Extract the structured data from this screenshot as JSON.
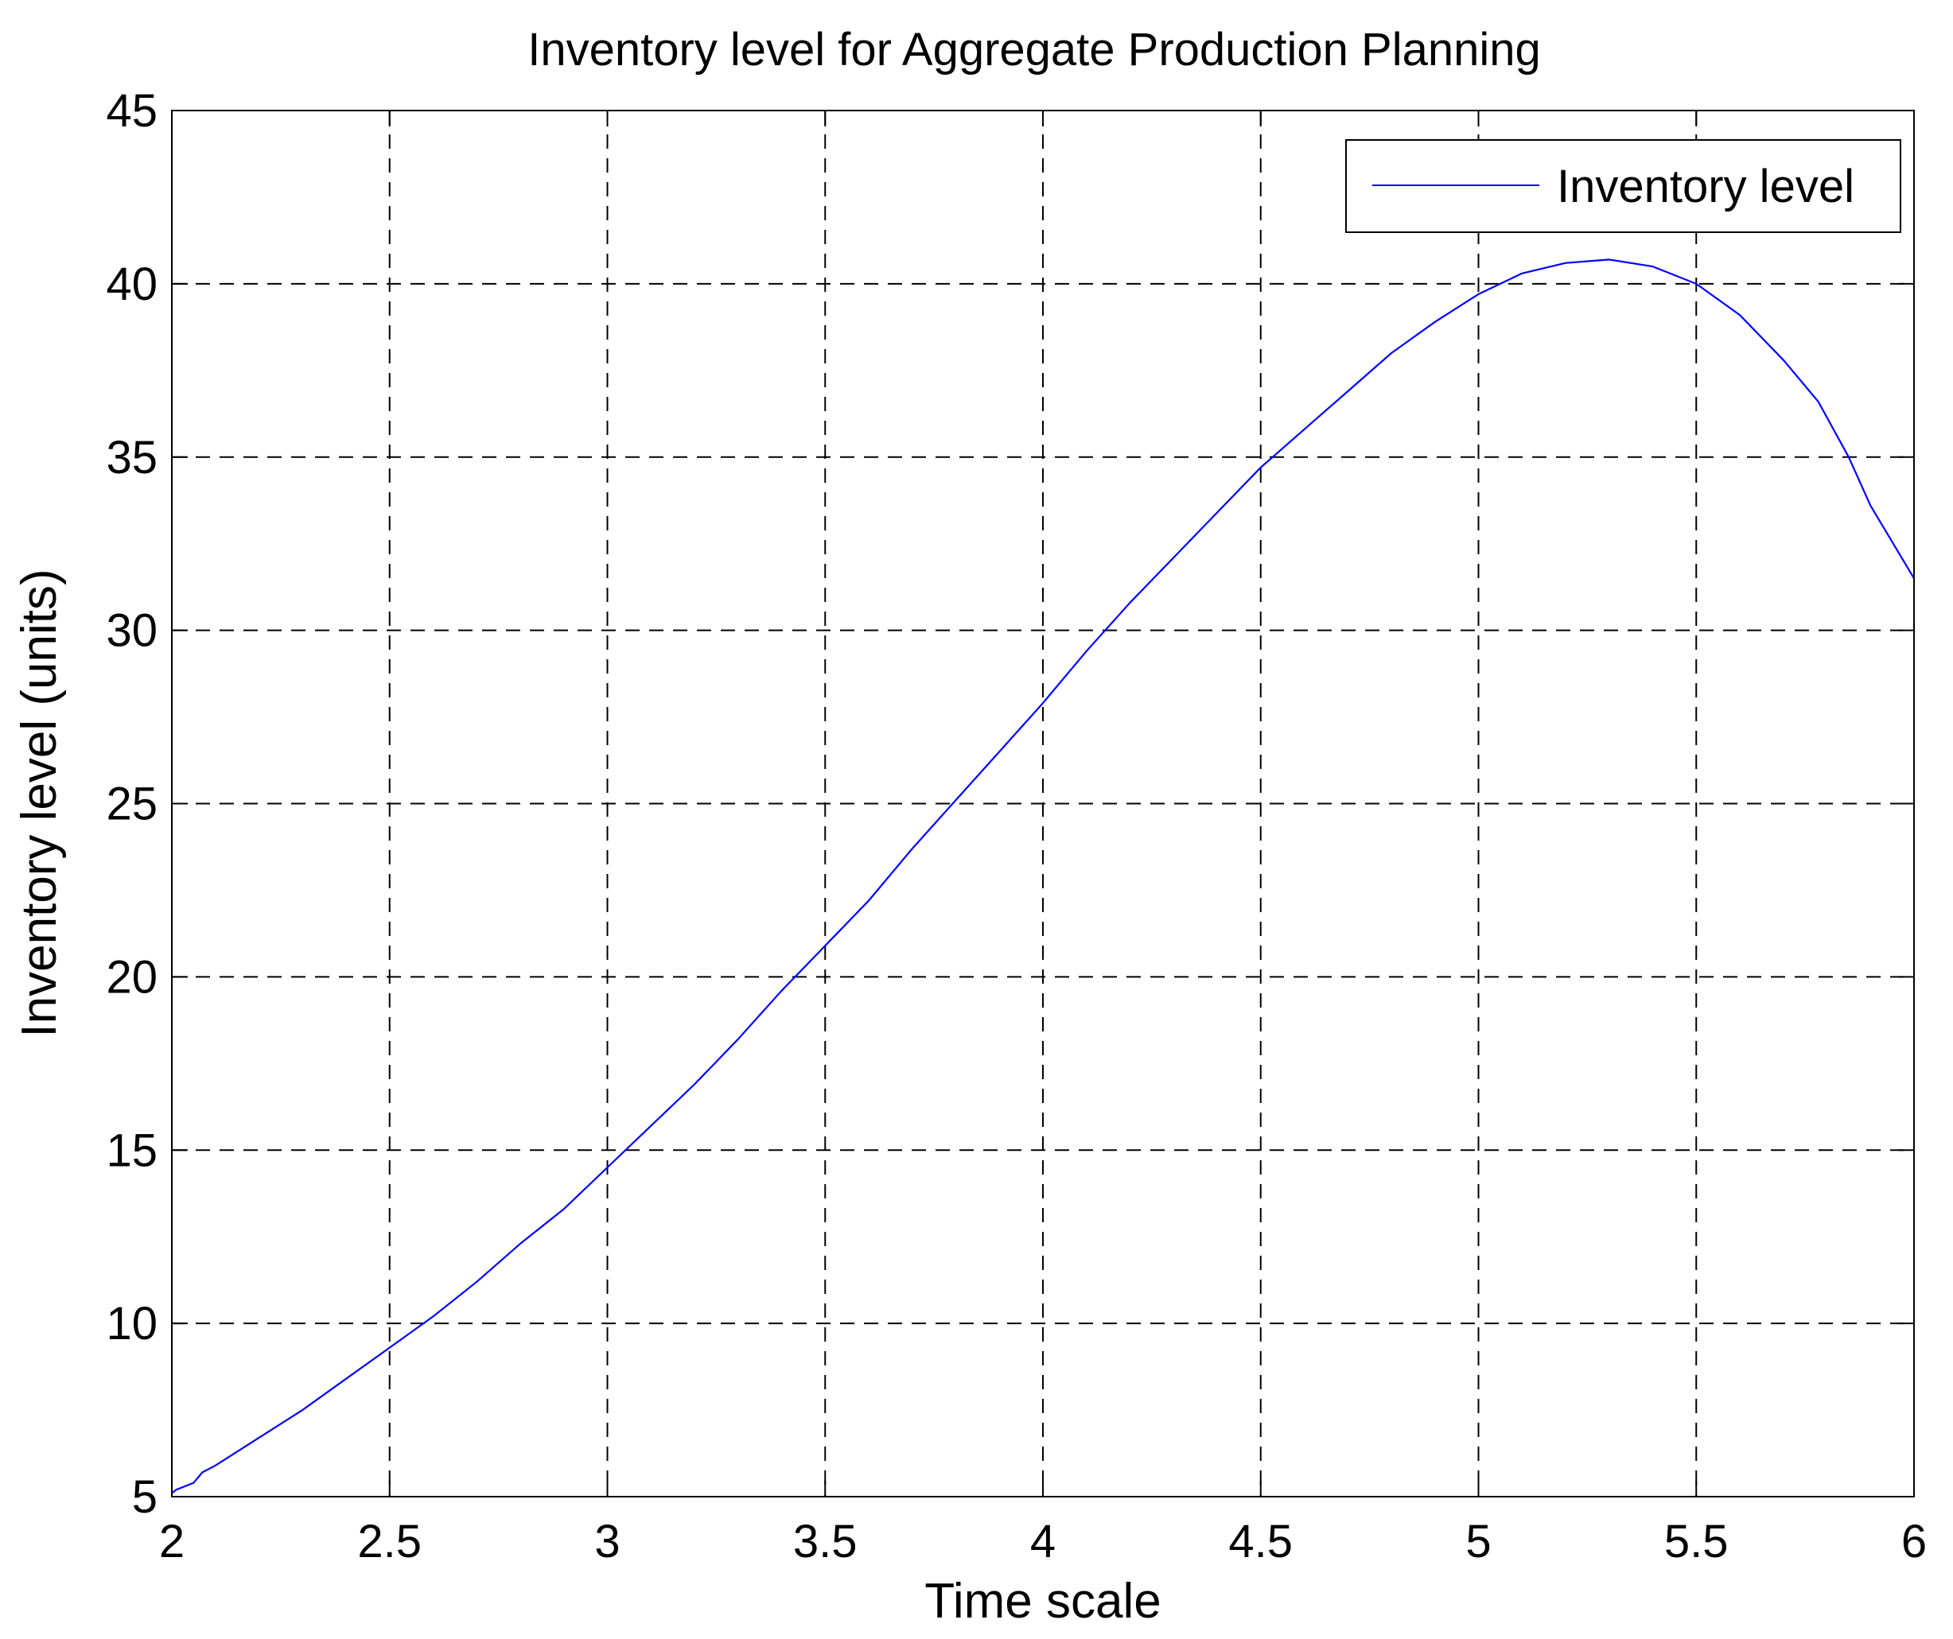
{
  "chart_data": {
    "type": "line",
    "title": "Inventory level for Aggregate Production Planning",
    "xlabel": "Time scale",
    "ylabel": "Inventory level (units)",
    "xlim": [
      2,
      6
    ],
    "ylim": [
      5,
      45
    ],
    "xticks": [
      2,
      2.5,
      3,
      3.5,
      4,
      4.5,
      5,
      5.5,
      6
    ],
    "xtick_labels": [
      "2",
      "2.5",
      "3",
      "3.5",
      "4",
      "4.5",
      "5",
      "5.5",
      "6"
    ],
    "yticks": [
      5,
      10,
      15,
      20,
      25,
      30,
      35,
      40,
      45
    ],
    "ytick_labels": [
      "5",
      "10",
      "15",
      "20",
      "25",
      "30",
      "35",
      "40",
      "45"
    ],
    "grid": true,
    "grid_style": "dashed",
    "legend_position": "top-right",
    "series": [
      {
        "name": "Inventory level",
        "color": "#0000ff",
        "x": [
          2.0,
          2.01,
          2.05,
          2.07,
          2.1,
          2.2,
          2.3,
          2.4,
          2.5,
          2.6,
          2.7,
          2.8,
          2.9,
          3.0,
          3.1,
          3.2,
          3.3,
          3.4,
          3.5,
          3.6,
          3.7,
          3.8,
          3.9,
          4.0,
          4.1,
          4.2,
          4.3,
          4.4,
          4.5,
          4.6,
          4.7,
          4.8,
          4.9,
          5.0,
          5.1,
          5.2,
          5.3,
          5.4,
          5.5,
          5.6,
          5.7,
          5.78,
          5.85,
          5.9,
          6.0
        ],
        "y": [
          5.1,
          5.2,
          5.4,
          5.7,
          5.9,
          6.7,
          7.5,
          8.4,
          9.3,
          10.2,
          11.2,
          12.3,
          13.3,
          14.5,
          15.7,
          16.9,
          18.2,
          19.6,
          20.9,
          22.2,
          23.7,
          25.1,
          26.5,
          27.9,
          29.4,
          30.8,
          32.1,
          33.4,
          34.7,
          35.8,
          36.9,
          38.0,
          38.9,
          39.7,
          40.3,
          40.6,
          40.7,
          40.5,
          40.0,
          39.1,
          37.8,
          36.6,
          35.0,
          33.6,
          31.5
        ]
      }
    ]
  }
}
